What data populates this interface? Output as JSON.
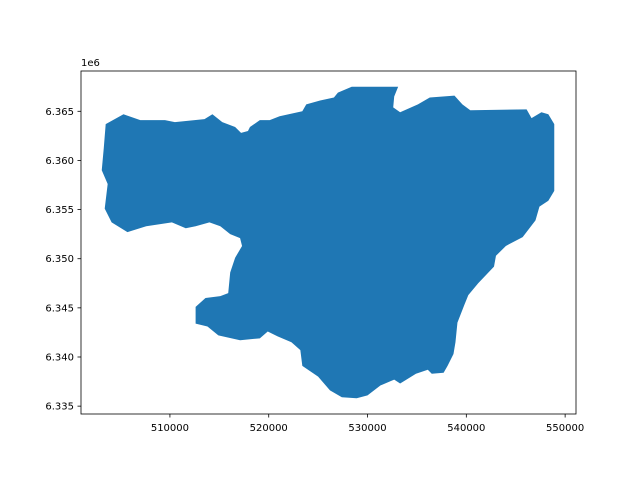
{
  "chart_data": {
    "type": "polygon",
    "color": "#1f77b4",
    "x": [
      503500,
      505300,
      507000,
      509500,
      510500,
      513500,
      514300,
      515300,
      516600,
      517200,
      517900,
      518100,
      519100,
      520100,
      521100,
      523400,
      523800,
      525200,
      526600,
      527000,
      528400,
      533100,
      532700,
      532600,
      533300,
      535100,
      536300,
      538800,
      539600,
      540400,
      546100,
      546600,
      547600,
      548300,
      548900,
      548900,
      548300,
      547400,
      547000,
      545700,
      544000,
      543000,
      542800,
      541200,
      540200,
      539800,
      539100,
      538900,
      538700,
      538100,
      537700,
      536500,
      536100,
      534900,
      533300,
      532700,
      531300,
      530000,
      528900,
      527400,
      526200,
      525000,
      523400,
      523200,
      522300,
      520900,
      519900,
      519100,
      517100,
      514900,
      513800,
      512600,
      512600,
      513600,
      515100,
      515900,
      516100,
      516600,
      517300,
      517100,
      516100,
      515100,
      514000,
      512600,
      511600,
      510200,
      507600,
      505700,
      504100,
      503400,
      503700,
      503100,
      503300
    ],
    "y": [
      6.3637,
      6.3647,
      6.3641,
      6.3641,
      6.3639,
      6.3642,
      6.3647,
      6.3639,
      6.3634,
      6.3628,
      6.363,
      6.3634,
      6.3641,
      6.3641,
      6.3645,
      6.365,
      6.3657,
      6.3661,
      6.3664,
      6.3669,
      6.3675,
      6.3675,
      6.3665,
      6.3654,
      6.3649,
      6.3657,
      6.3664,
      6.3666,
      6.3657,
      6.3651,
      6.3652,
      6.3643,
      6.3649,
      6.3647,
      6.3637,
      6.3569,
      6.3559,
      6.3553,
      6.3539,
      6.3522,
      6.3513,
      6.3503,
      6.3492,
      6.3475,
      6.3463,
      6.3453,
      6.3435,
      6.3415,
      6.3403,
      6.3391,
      6.3384,
      6.3383,
      6.3387,
      6.3383,
      6.3373,
      6.3377,
      6.3371,
      6.3361,
      6.3358,
      6.3359,
      6.3366,
      6.338,
      6.3391,
      6.3407,
      6.3415,
      6.3421,
      6.3426,
      6.3419,
      6.3417,
      6.3422,
      6.3431,
      6.3434,
      6.3451,
      6.346,
      6.3462,
      6.3465,
      6.3486,
      6.3501,
      6.3513,
      6.3521,
      6.3525,
      6.3533,
      6.3537,
      6.3533,
      6.3531,
      6.3537,
      6.3533,
      6.3527,
      6.3537,
      6.3551,
      6.3576,
      6.359,
      6.3612
    ],
    "xlim": [
      501000,
      551100
    ],
    "ylim": [
      6.3342,
      6.3691
    ],
    "xticks": [
      510000,
      520000,
      530000,
      540000,
      550000
    ],
    "yticks": [
      6.335,
      {
        "value": 6.34,
        "label": "6.340"
      },
      6.345,
      {
        "value": 6.35,
        "label": "6.350"
      },
      6.355,
      {
        "value": 6.36,
        "label": "6.360"
      },
      6.365
    ],
    "offset_label": "1e6"
  }
}
